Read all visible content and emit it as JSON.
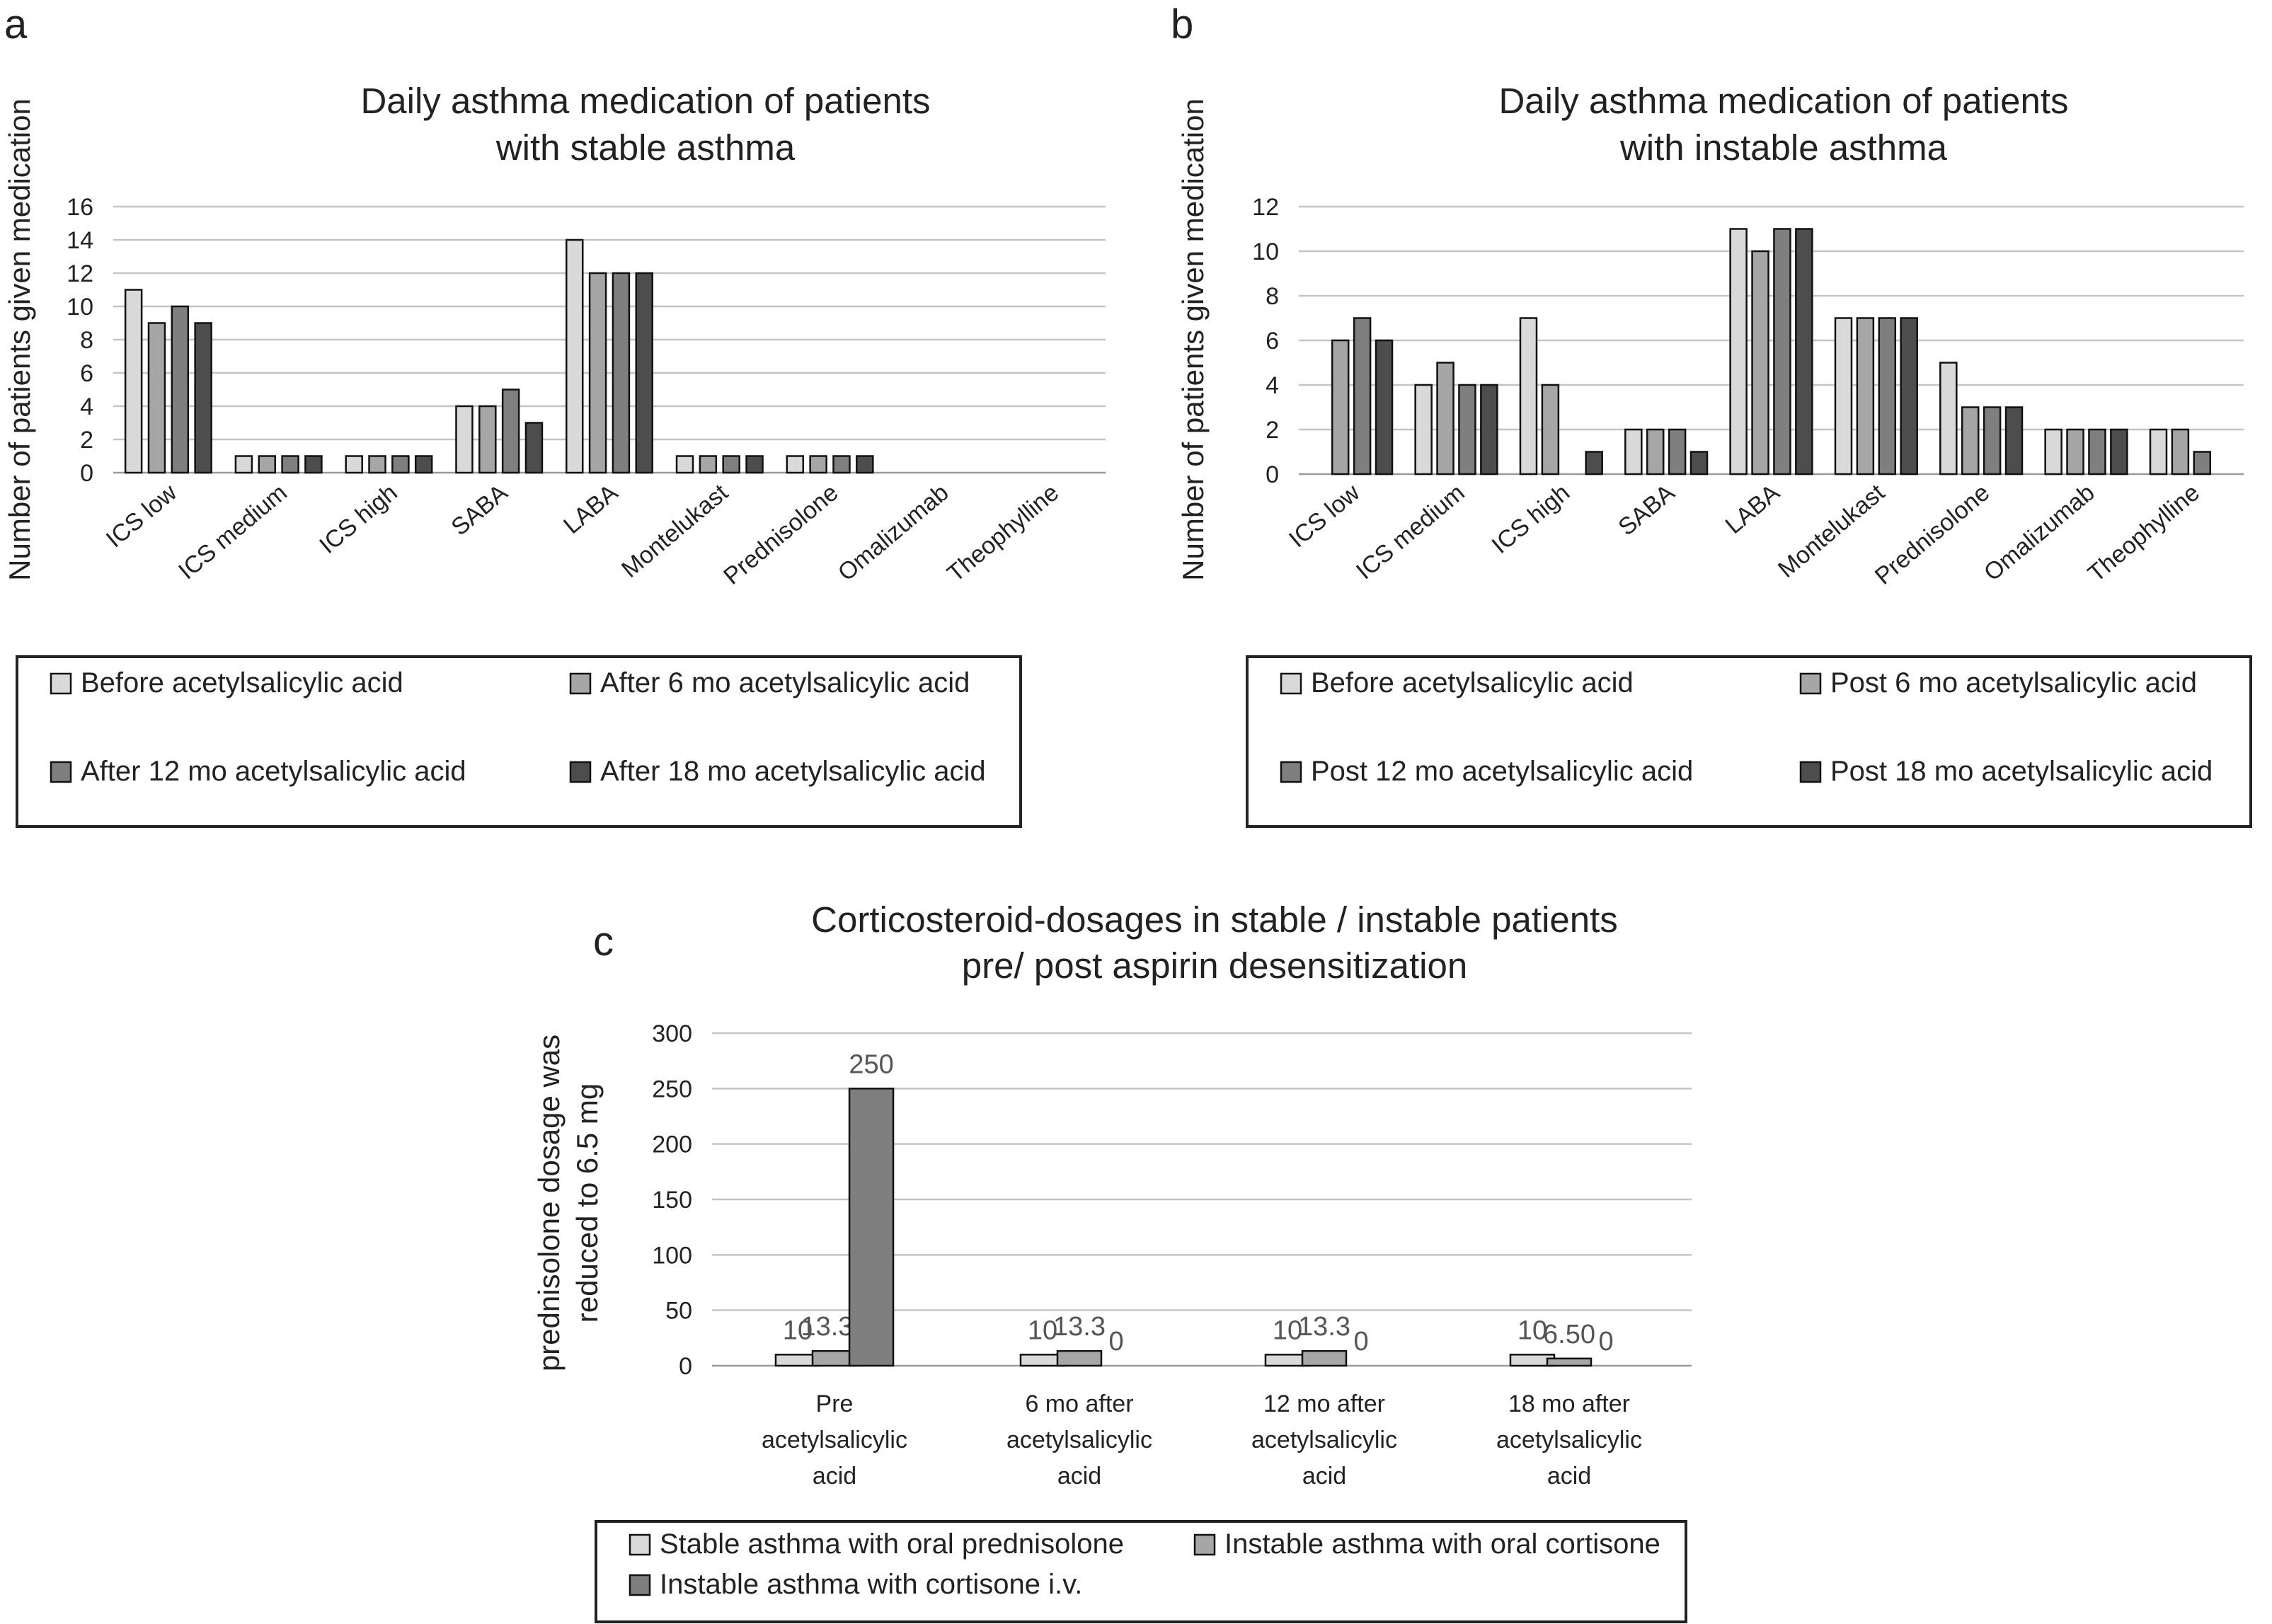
{
  "chart_data": [
    {
      "panel": "a",
      "type": "bar",
      "title": "Daily asthma medication of patients with stable asthma",
      "title_lines": [
        "Daily asthma medication of patients",
        "with stable asthma"
      ],
      "ylabel": "Number of patients given medication",
      "xlabel": "",
      "ylim": [
        0,
        16
      ],
      "yticks": [
        "0",
        "2",
        "4",
        "6",
        "8",
        "10",
        "12",
        "14",
        "16"
      ],
      "categories": [
        "ICS low",
        "ICS medium",
        "ICS high",
        "SABA",
        "LABA",
        "Montelukast",
        "Prednisolone",
        "Omalizumab",
        "Theophylline"
      ],
      "series": [
        {
          "name": "Before acetylsalicylic acid",
          "color": "#d9d9d9",
          "values": [
            11,
            1,
            1,
            4,
            14,
            1,
            1,
            0,
            0
          ]
        },
        {
          "name": "After 6 mo acetylsalicylic acid",
          "color": "#a6a6a6",
          "values": [
            9,
            1,
            1,
            4,
            12,
            1,
            1,
            0,
            0
          ]
        },
        {
          "name": "After 12 mo acetylsalicylic acid",
          "color": "#7f7f7f",
          "values": [
            10,
            1,
            1,
            5,
            12,
            1,
            1,
            0,
            0
          ]
        },
        {
          "name": "After 18 mo acetylsalicylic acid",
          "color": "#4d4d4d",
          "values": [
            9,
            1,
            1,
            3,
            12,
            1,
            1,
            0,
            0
          ]
        }
      ],
      "grid": true,
      "legend_position": "bottom"
    },
    {
      "panel": "b",
      "type": "bar",
      "title": "Daily asthma medication of patients with instable asthma",
      "title_lines": [
        "Daily asthma medication of patients",
        "with instable asthma"
      ],
      "ylabel": "Number of patients given medication",
      "xlabel": "",
      "ylim": [
        0,
        12
      ],
      "yticks": [
        "0",
        "2",
        "4",
        "6",
        "8",
        "10",
        "12"
      ],
      "categories": [
        "ICS low",
        "ICS medium",
        "ICS high",
        "SABA",
        "LABA",
        "Montelukast",
        "Prednisolone",
        "Omalizumab",
        "Theophylline"
      ],
      "series": [
        {
          "name": "Before acetylsalicylic acid",
          "color": "#d9d9d9",
          "values": [
            0,
            4,
            7,
            2,
            11,
            7,
            5,
            2,
            2
          ]
        },
        {
          "name": "Post 6 mo acetylsalicylic acid",
          "color": "#a6a6a6",
          "values": [
            6,
            5,
            4,
            2,
            10,
            7,
            3,
            2,
            2
          ]
        },
        {
          "name": "Post 12 mo acetylsalicylic acid",
          "color": "#7f7f7f",
          "values": [
            7,
            4,
            0,
            2,
            11,
            7,
            3,
            2,
            1
          ]
        },
        {
          "name": "Post 18 mo acetylsalicylic acid",
          "color": "#4d4d4d",
          "values": [
            6,
            4,
            1,
            1,
            11,
            7,
            3,
            2,
            0
          ]
        }
      ],
      "grid": true,
      "legend_position": "bottom"
    },
    {
      "panel": "c",
      "type": "bar",
      "title": "Corticosteroid-dosages in stable / instable patients pre/ post aspirin desensitization",
      "title_lines": [
        "Corticosteroid-dosages in stable / instable patients",
        "pre/ post aspirin desensitization"
      ],
      "ylabel_lines": [
        "prednisolone dosage was",
        "reduced to 6.5 mg"
      ],
      "xlabel": "",
      "ylim": [
        0,
        300
      ],
      "yticks": [
        "0",
        "50",
        "100",
        "150",
        "200",
        "250",
        "300"
      ],
      "categories": [
        "Pre acetylsalicylic acid",
        "6 mo after acetylsalicylic acid",
        "12 mo after acetylsalicylic acid",
        "18 mo after acetylsalicylic acid"
      ],
      "category_lines": [
        [
          "Pre",
          "acetylsalicylic",
          "acid"
        ],
        [
          "6 mo after",
          "acetylsalicylic",
          "acid"
        ],
        [
          "12 mo after",
          "acetylsalicylic",
          "acid"
        ],
        [
          "18 mo after",
          "acetylsalicylic",
          "acid"
        ]
      ],
      "series": [
        {
          "name": "Stable asthma with oral prednisolone",
          "color": "#d9d9d9",
          "values": [
            10,
            10,
            10,
            10
          ],
          "labels": [
            "10",
            "10",
            "10",
            "10"
          ]
        },
        {
          "name": "Instable asthma with oral cortisone",
          "color": "#a6a6a6",
          "values": [
            13.3,
            13.3,
            13.3,
            6.5
          ],
          "labels": [
            "13.30",
            "13.3",
            "13.3",
            "6.50"
          ]
        },
        {
          "name": "Instable asthma with cortisone i.v.",
          "color": "#7f7f7f",
          "values": [
            250,
            0,
            0,
            0
          ],
          "labels": [
            "250",
            "0",
            "0",
            "0"
          ]
        }
      ],
      "grid": true,
      "legend_position": "bottom"
    }
  ]
}
